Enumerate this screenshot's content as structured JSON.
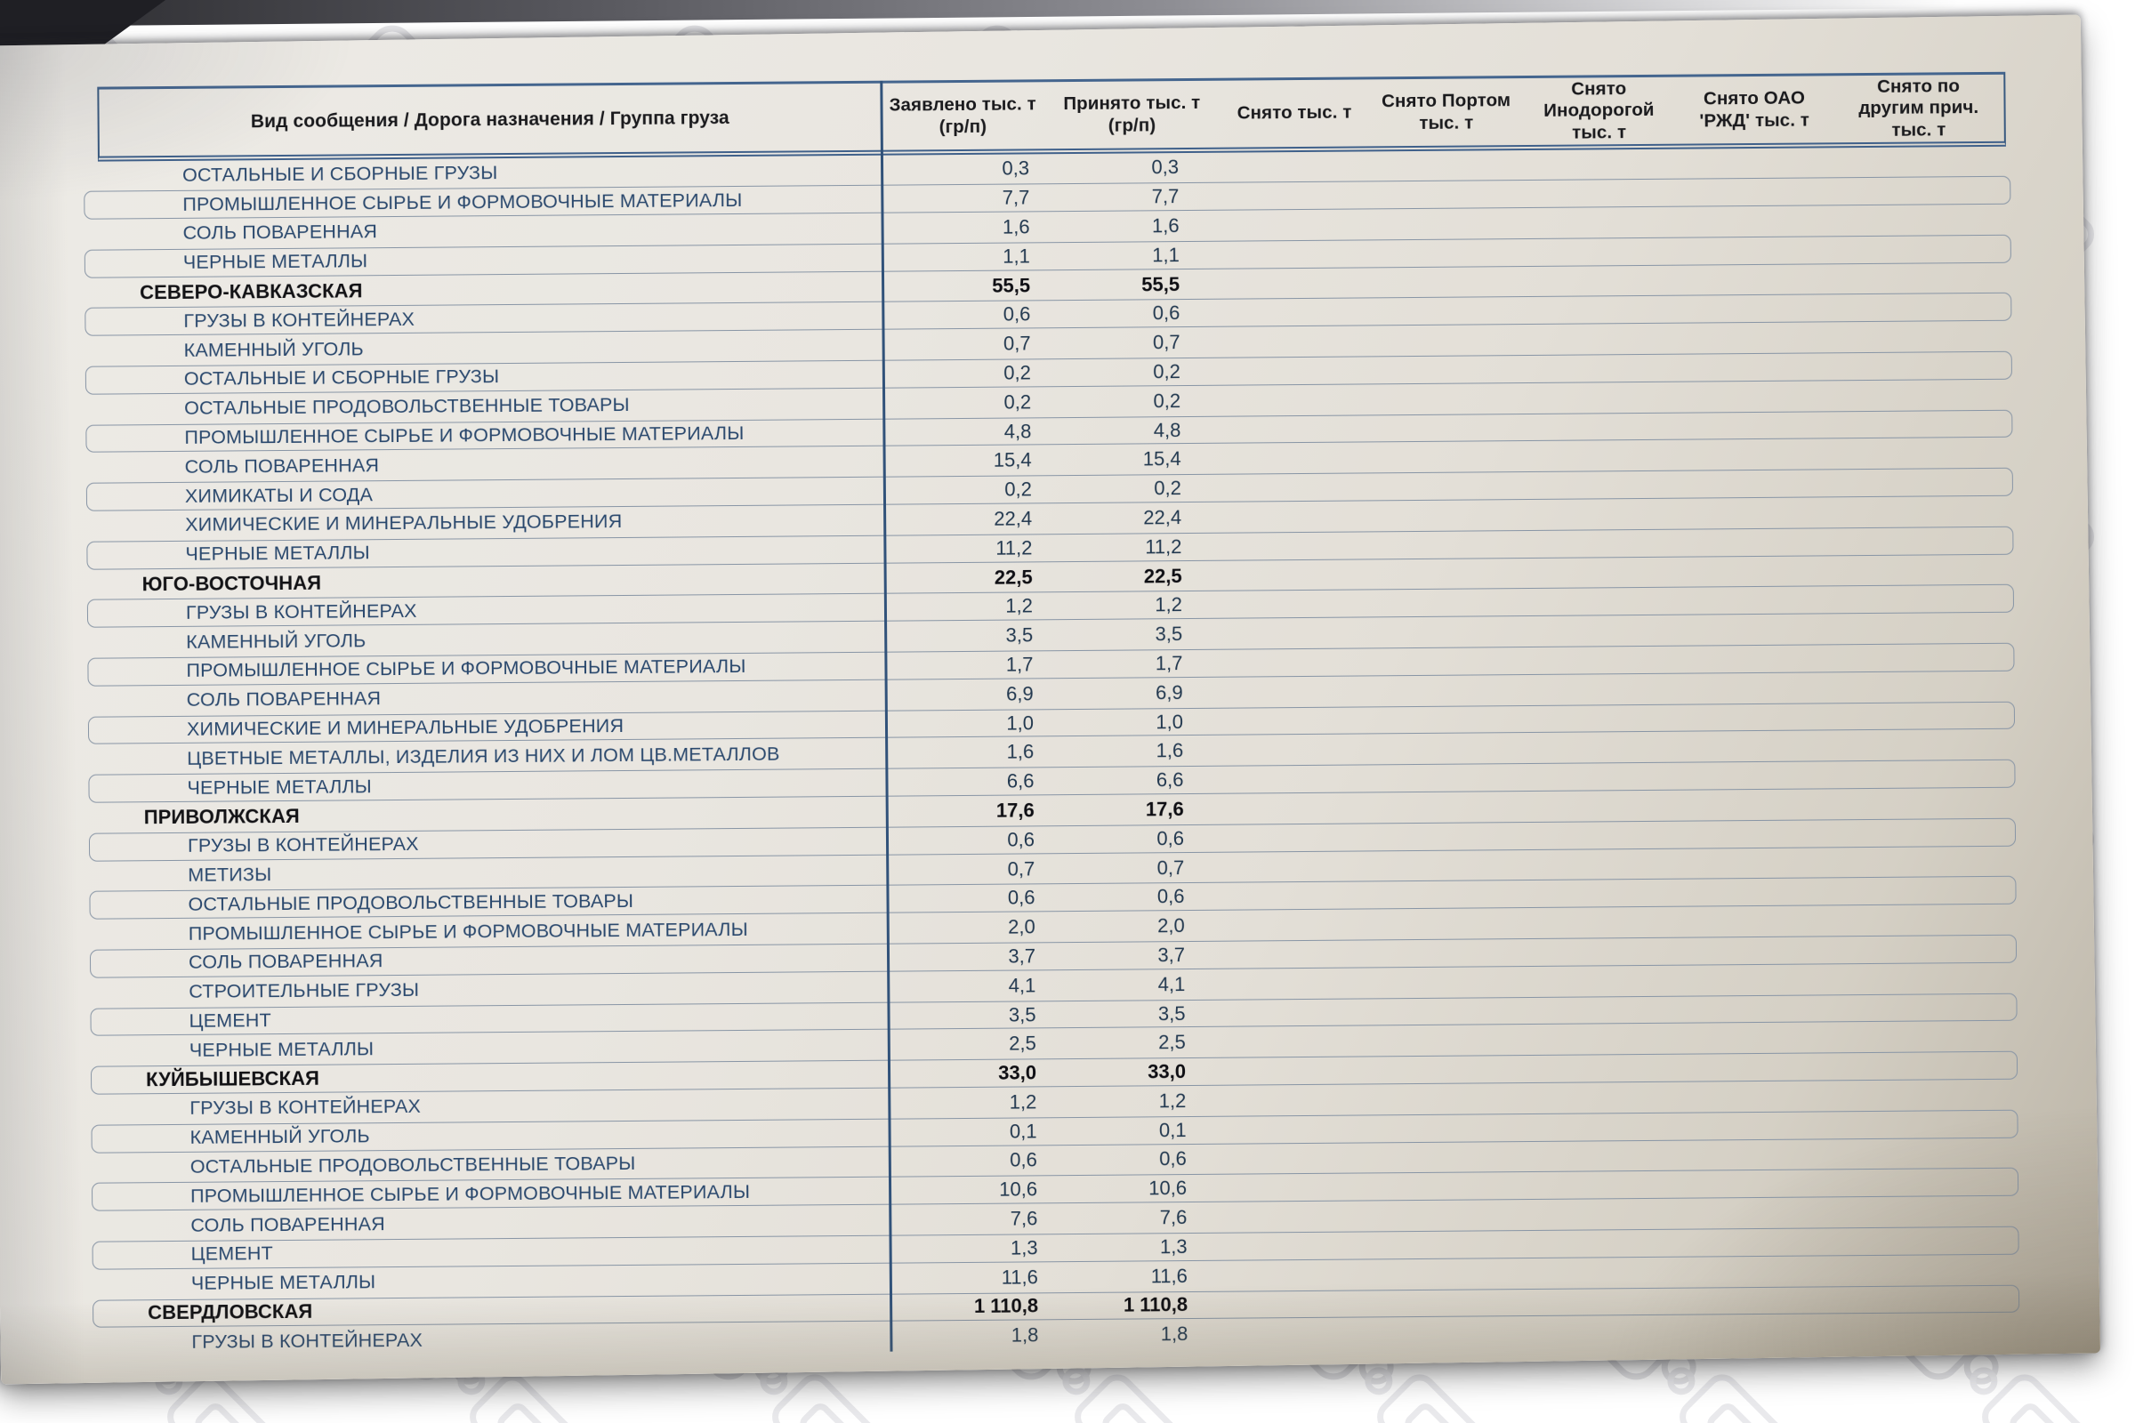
{
  "document_type": "photographed printed spreadsheet page",
  "colors": {
    "paper": "#e9e6e0",
    "paper_shadow_corner": "#b9b2a4",
    "table_border_blue": "#3f608a",
    "row_box_border": "#8895a5",
    "label_text": "#2a486d",
    "group_text": "#121215",
    "number_text": "#22384f",
    "photo_background": "#ffffff",
    "watermark_icon": "#e3e3e6",
    "dark_corner": "#1f1f24"
  },
  "table": {
    "columns": [
      {
        "id": "group",
        "lines": [
          "Вид сообщения / Дорога назначения / Группа груза"
        ]
      },
      {
        "id": "declared",
        "lines": [
          "Заявлено тыс. т",
          "(гр/п)"
        ]
      },
      {
        "id": "accepted",
        "lines": [
          "Принято тыс. т",
          "(гр/п)"
        ]
      },
      {
        "id": "removed",
        "lines": [
          "Снято тыс. т"
        ]
      },
      {
        "id": "removed_port",
        "lines": [
          "Снято Портом",
          "тыс. т"
        ]
      },
      {
        "id": "removed_foreign",
        "lines": [
          "Снято",
          "Инодорогой",
          "тыс. т"
        ]
      },
      {
        "id": "removed_rzd",
        "lines": [
          "Снято ОАО",
          "'РЖД' тыс. т"
        ]
      },
      {
        "id": "removed_other",
        "lines": [
          "Снято по",
          "другим прич.",
          "тыс. т"
        ]
      }
    ],
    "rows": [
      {
        "type": "item",
        "label": "ОСТАЛЬНЫЕ И  СБОРНЫЕ ГРУЗЫ",
        "declared": "0,3",
        "accepted": "0,3"
      },
      {
        "type": "item",
        "label": "ПРОМЫШЛЕННОЕ СЫРЬЕ И ФОРМОВОЧНЫЕ МАТЕРИАЛЫ",
        "declared": "7,7",
        "accepted": "7,7"
      },
      {
        "type": "item",
        "label": "СОЛЬ ПОВАРЕННАЯ",
        "declared": "1,6",
        "accepted": "1,6"
      },
      {
        "type": "item",
        "label": "ЧЕРНЫЕ МЕТАЛЛЫ",
        "declared": "1,1",
        "accepted": "1,1"
      },
      {
        "type": "group",
        "label": "СЕВЕРО-КАВКАЗСКАЯ",
        "declared": "55,5",
        "accepted": "55,5"
      },
      {
        "type": "item",
        "label": "ГРУЗЫ В КОНТЕЙНЕРАХ",
        "declared": "0,6",
        "accepted": "0,6"
      },
      {
        "type": "item",
        "label": "КАМЕННЫЙ УГОЛЬ",
        "declared": "0,7",
        "accepted": "0,7"
      },
      {
        "type": "item",
        "label": "ОСТАЛЬНЫЕ И  СБОРНЫЕ ГРУЗЫ",
        "declared": "0,2",
        "accepted": "0,2"
      },
      {
        "type": "item",
        "label": "ОСТАЛЬНЫЕ ПРОДОВОЛЬСТВЕННЫЕ ТОВАРЫ",
        "declared": "0,2",
        "accepted": "0,2"
      },
      {
        "type": "item",
        "label": "ПРОМЫШЛЕННОЕ СЫРЬЕ И ФОРМОВОЧНЫЕ МАТЕРИАЛЫ",
        "declared": "4,8",
        "accepted": "4,8"
      },
      {
        "type": "item",
        "label": "СОЛЬ ПОВАРЕННАЯ",
        "declared": "15,4",
        "accepted": "15,4"
      },
      {
        "type": "item",
        "label": "ХИМИКАТЫ И СОДА",
        "declared": "0,2",
        "accepted": "0,2"
      },
      {
        "type": "item",
        "label": "ХИМИЧЕСКИЕ И МИНЕРАЛЬНЫЕ УДОБРЕНИЯ",
        "declared": "22,4",
        "accepted": "22,4"
      },
      {
        "type": "item",
        "label": "ЧЕРНЫЕ МЕТАЛЛЫ",
        "declared": "11,2",
        "accepted": "11,2"
      },
      {
        "type": "group",
        "label": "ЮГО-ВОСТОЧНАЯ",
        "declared": "22,5",
        "accepted": "22,5"
      },
      {
        "type": "item",
        "label": "ГРУЗЫ В КОНТЕЙНЕРАХ",
        "declared": "1,2",
        "accepted": "1,2"
      },
      {
        "type": "item",
        "label": "КАМЕННЫЙ УГОЛЬ",
        "declared": "3,5",
        "accepted": "3,5"
      },
      {
        "type": "item",
        "label": "ПРОМЫШЛЕННОЕ СЫРЬЕ И ФОРМОВОЧНЫЕ МАТЕРИАЛЫ",
        "declared": "1,7",
        "accepted": "1,7"
      },
      {
        "type": "item",
        "label": "СОЛЬ ПОВАРЕННАЯ",
        "declared": "6,9",
        "accepted": "6,9"
      },
      {
        "type": "item",
        "label": "ХИМИЧЕСКИЕ И МИНЕРАЛЬНЫЕ УДОБРЕНИЯ",
        "declared": "1,0",
        "accepted": "1,0"
      },
      {
        "type": "item",
        "label": "ЦВЕТНЫЕ МЕТАЛЛЫ, ИЗДЕЛИЯ ИЗ НИХ И ЛОМ ЦВ.МЕТАЛЛОВ",
        "declared": "1,6",
        "accepted": "1,6"
      },
      {
        "type": "item",
        "label": "ЧЕРНЫЕ МЕТАЛЛЫ",
        "declared": "6,6",
        "accepted": "6,6"
      },
      {
        "type": "group",
        "label": "ПРИВОЛЖСКАЯ",
        "declared": "17,6",
        "accepted": "17,6"
      },
      {
        "type": "item",
        "label": "ГРУЗЫ В КОНТЕЙНЕРАХ",
        "declared": "0,6",
        "accepted": "0,6"
      },
      {
        "type": "item",
        "label": "МЕТИЗЫ",
        "declared": "0,7",
        "accepted": "0,7"
      },
      {
        "type": "item",
        "label": "ОСТАЛЬНЫЕ ПРОДОВОЛЬСТВЕННЫЕ ТОВАРЫ",
        "declared": "0,6",
        "accepted": "0,6"
      },
      {
        "type": "item",
        "label": "ПРОМЫШЛЕННОЕ СЫРЬЕ И ФОРМОВОЧНЫЕ МАТЕРИАЛЫ",
        "declared": "2,0",
        "accepted": "2,0"
      },
      {
        "type": "item",
        "label": "СОЛЬ ПОВАРЕННАЯ",
        "declared": "3,7",
        "accepted": "3,7"
      },
      {
        "type": "item",
        "label": "СТРОИТЕЛЬНЫЕ ГРУЗЫ",
        "declared": "4,1",
        "accepted": "4,1"
      },
      {
        "type": "item",
        "label": "ЦЕМЕНТ",
        "declared": "3,5",
        "accepted": "3,5"
      },
      {
        "type": "item",
        "label": "ЧЕРНЫЕ МЕТАЛЛЫ",
        "declared": "2,5",
        "accepted": "2,5"
      },
      {
        "type": "group",
        "label": "КУЙБЫШЕВСКАЯ",
        "declared": "33,0",
        "accepted": "33,0"
      },
      {
        "type": "item",
        "label": "ГРУЗЫ В КОНТЕЙНЕРАХ",
        "declared": "1,2",
        "accepted": "1,2"
      },
      {
        "type": "item",
        "label": "КАМЕННЫЙ УГОЛЬ",
        "declared": "0,1",
        "accepted": "0,1"
      },
      {
        "type": "item",
        "label": "ОСТАЛЬНЫЕ ПРОДОВОЛЬСТВЕННЫЕ ТОВАРЫ",
        "declared": "0,6",
        "accepted": "0,6"
      },
      {
        "type": "item",
        "label": "ПРОМЫШЛЕННОЕ СЫРЬЕ И ФОРМОВОЧНЫЕ МАТЕРИАЛЫ",
        "declared": "10,6",
        "accepted": "10,6"
      },
      {
        "type": "item",
        "label": "СОЛЬ ПОВАРЕННАЯ",
        "declared": "7,6",
        "accepted": "7,6"
      },
      {
        "type": "item",
        "label": "ЦЕМЕНТ",
        "declared": "1,3",
        "accepted": "1,3"
      },
      {
        "type": "item",
        "label": "ЧЕРНЫЕ МЕТАЛЛЫ",
        "declared": "11,6",
        "accepted": "11,6"
      },
      {
        "type": "group",
        "label": "СВЕРДЛОВСКАЯ",
        "declared": "1 110,8",
        "accepted": "1 110,8"
      },
      {
        "type": "item",
        "label": "ГРУЗЫ В КОНТЕЙНЕРАХ",
        "declared": "1,8",
        "accepted": "1,8"
      }
    ]
  }
}
